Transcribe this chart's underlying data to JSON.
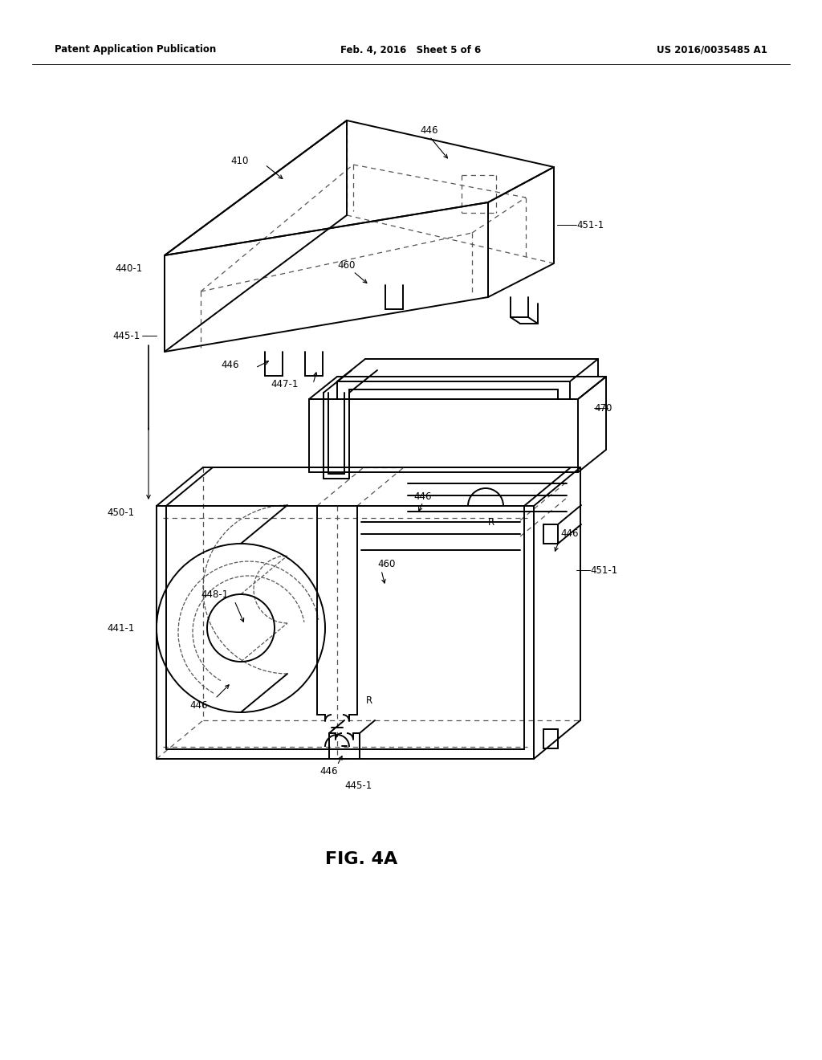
{
  "title": "FIG. 4A",
  "header_left": "Patent Application Publication",
  "header_mid": "Feb. 4, 2016   Sheet 5 of 6",
  "header_right": "US 2016/0035485 A1",
  "bg_color": "#ffffff",
  "lc": "#000000",
  "dc": "#555555",
  "lw_main": 1.4,
  "lw_dash": 0.9,
  "fontsize_label": 8.5,
  "fontsize_title": 16,
  "fontsize_header": 8.5
}
